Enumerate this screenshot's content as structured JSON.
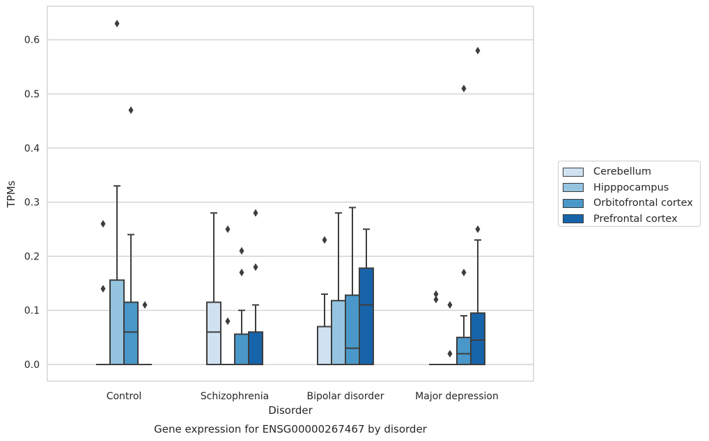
{
  "chart_data": {
    "type": "box",
    "title": "Gene expression for ENSG00000267467 by disorder",
    "xlabel": "Disorder",
    "ylabel": "TPMs",
    "ylim": [
      -0.03,
      0.66
    ],
    "yticks": [
      "0.0",
      "0.1",
      "0.2",
      "0.3",
      "0.4",
      "0.5",
      "0.6"
    ],
    "grid": "horizontal",
    "legend_placement": "right",
    "categories": [
      "Control",
      "Schizophrenia",
      "Bipolar disorder",
      "Major depression"
    ],
    "series": [
      {
        "name": "Cerebellum",
        "color": "#d0e1f2",
        "boxes": [
          {
            "q1": 0,
            "median": 0,
            "q3": 0,
            "whisker_low": 0,
            "whisker_high": 0,
            "outliers": [
              0.26,
              0.14
            ]
          },
          {
            "q1": 0,
            "median": 0.06,
            "q3": 0.115,
            "whisker_low": 0,
            "whisker_high": 0.28,
            "outliers": []
          },
          {
            "q1": 0,
            "median": 0,
            "q3": 0.07,
            "whisker_low": 0,
            "whisker_high": 0.13,
            "outliers": [
              0.23
            ]
          },
          {
            "q1": 0,
            "median": 0,
            "q3": 0,
            "whisker_low": 0,
            "whisker_high": 0,
            "outliers": [
              0.13,
              0.12
            ]
          }
        ]
      },
      {
        "name": "Hipppocampus",
        "color": "#94c4df",
        "boxes": [
          {
            "q1": 0,
            "median": 0,
            "q3": 0.156,
            "whisker_low": 0,
            "whisker_high": 0.33,
            "outliers": [
              0.63
            ]
          },
          {
            "q1": 0,
            "median": 0,
            "q3": 0,
            "whisker_low": 0,
            "whisker_high": 0,
            "outliers": [
              0.25,
              0.08
            ]
          },
          {
            "q1": 0,
            "median": 0,
            "q3": 0.118,
            "whisker_low": 0,
            "whisker_high": 0.28,
            "outliers": []
          },
          {
            "q1": 0,
            "median": 0,
            "q3": 0,
            "whisker_low": 0,
            "whisker_high": 0,
            "outliers": [
              0.11,
              0.02
            ]
          }
        ]
      },
      {
        "name": "Orbitofrontal cortex",
        "color": "#4a98c9",
        "boxes": [
          {
            "q1": 0,
            "median": 0.06,
            "q3": 0.115,
            "whisker_low": 0,
            "whisker_high": 0.24,
            "outliers": [
              0.47
            ]
          },
          {
            "q1": 0,
            "median": 0,
            "q3": 0.056,
            "whisker_low": 0,
            "whisker_high": 0.1,
            "outliers": [
              0.21,
              0.17
            ]
          },
          {
            "q1": 0,
            "median": 0.03,
            "q3": 0.128,
            "whisker_low": 0,
            "whisker_high": 0.29,
            "outliers": []
          },
          {
            "q1": 0,
            "median": 0.02,
            "q3": 0.05,
            "whisker_low": 0,
            "whisker_high": 0.09,
            "outliers": [
              0.51,
              0.17
            ]
          }
        ]
      },
      {
        "name": "Prefrontal cortex",
        "color": "#1764ab",
        "boxes": [
          {
            "q1": 0,
            "median": 0,
            "q3": 0,
            "whisker_low": 0,
            "whisker_high": 0,
            "outliers": [
              0.11
            ]
          },
          {
            "q1": 0,
            "median": 0,
            "q3": 0.06,
            "whisker_low": 0,
            "whisker_high": 0.11,
            "outliers": [
              0.28,
              0.18
            ]
          },
          {
            "q1": 0,
            "median": 0.11,
            "q3": 0.178,
            "whisker_low": 0,
            "whisker_high": 0.25,
            "outliers": []
          },
          {
            "q1": 0,
            "median": 0.045,
            "q3": 0.095,
            "whisker_low": 0,
            "whisker_high": 0.23,
            "outliers": [
              0.58,
              0.25
            ]
          }
        ]
      }
    ]
  }
}
